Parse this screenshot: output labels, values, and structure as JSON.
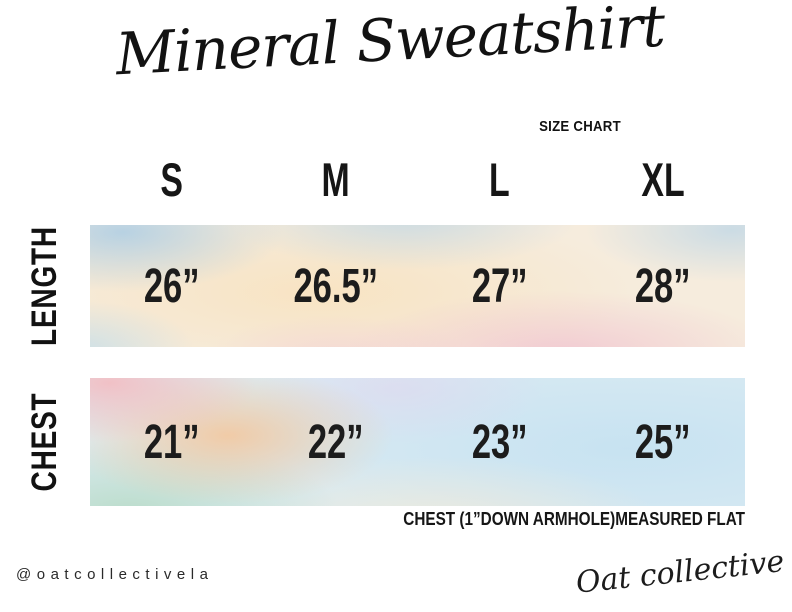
{
  "title": "Mineral Sweatshirt",
  "subtitle": "SIZE CHART",
  "chart_data": {
    "type": "table",
    "title": "Mineral Sweatshirt",
    "subtitle": "SIZE CHART",
    "columns": [
      "S",
      "M",
      "L",
      "XL"
    ],
    "rows": [
      {
        "label": "LENGTH",
        "values": [
          "26”",
          "26.5”",
          "27”",
          "28”"
        ]
      },
      {
        "label": "CHEST",
        "values": [
          "21”",
          "22”",
          "23”",
          "25”"
        ]
      }
    ],
    "note": "CHEST (1”DOWN ARMHOLE)MEASURED FLAT",
    "units": "inches"
  },
  "footer": {
    "handle": "@oatcollectivela",
    "brand": "Oat collective"
  },
  "colors": {
    "text": "#161616",
    "band_cream": "#f6ecdd",
    "band_blue": "#a8cbe4",
    "band_pink": "#f3bcc1",
    "band_peach": "#f6c394",
    "band_teal": "#badcca",
    "band_lavender": "#e1d2ee",
    "band_babyblue": "#c6e2f1"
  }
}
